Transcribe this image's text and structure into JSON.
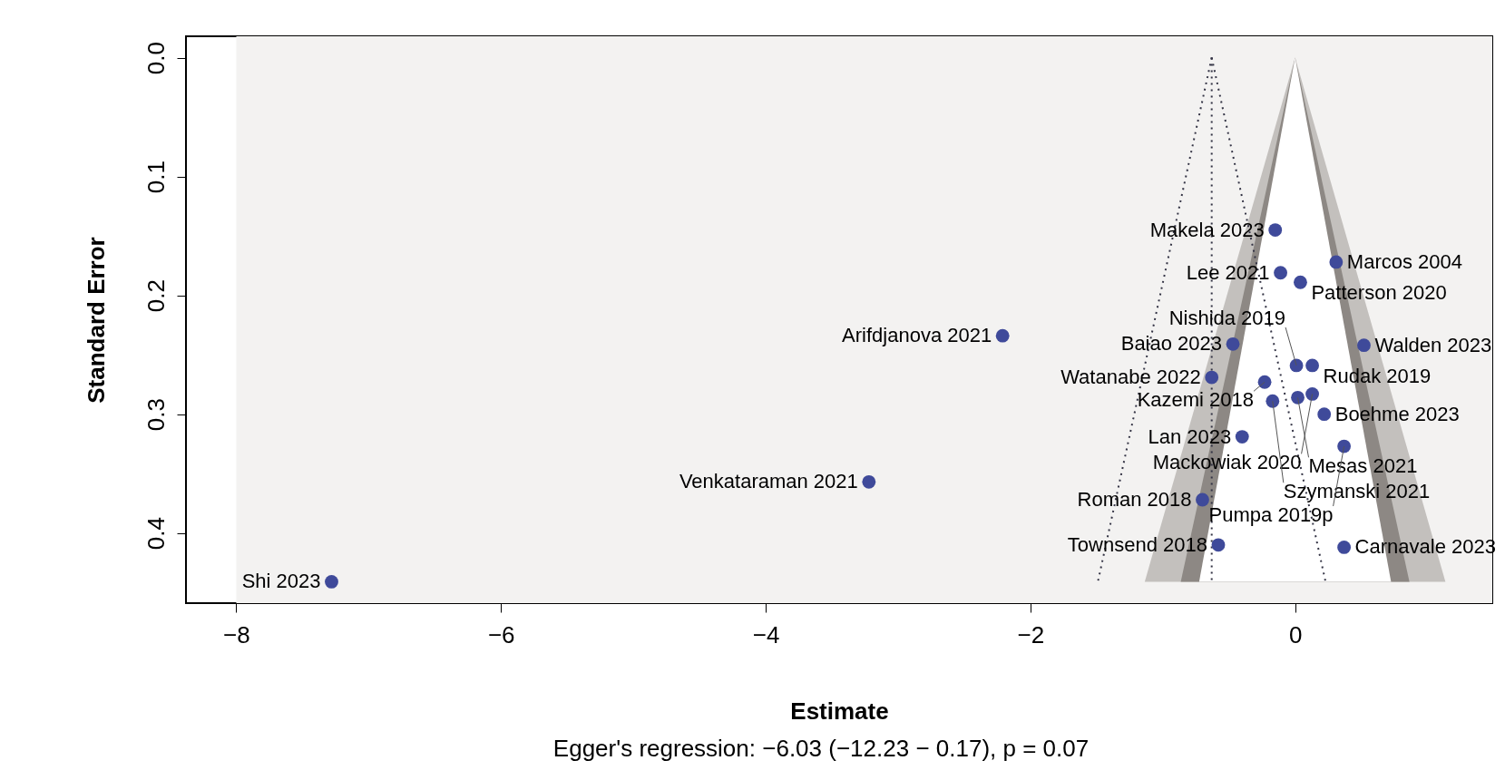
{
  "chart_data": {
    "type": "scatter",
    "xlabel": "Estimate",
    "ylabel": "Standard Error",
    "xlim": [
      -8.38,
      1.49
    ],
    "ylim": [
      0.459,
      -0.018
    ],
    "xticks": [
      {
        "value": -8,
        "label": "−8"
      },
      {
        "value": -6,
        "label": "−6"
      },
      {
        "value": -4,
        "label": "−4"
      },
      {
        "value": -2,
        "label": "−2"
      },
      0
    ],
    "yticks": [
      {
        "value": 0,
        "label": "0.0"
      },
      {
        "value": 0.1,
        "label": "0.1"
      },
      {
        "value": 0.2,
        "label": "0.2"
      },
      {
        "value": 0.3,
        "label": "0.3"
      },
      {
        "value": 0.4,
        "label": "0.4"
      }
    ],
    "grid": false,
    "bands": [
      {
        "axis": "x",
        "from": -8,
        "to": 1.49,
        "color": "#f3f2f1"
      }
    ],
    "series": [
      {
        "type": "area",
        "color": "#c3c0bd",
        "x": [
          -1.136,
          0,
          1.136
        ],
        "values": [
          0.441,
          0,
          0.441
        ]
      },
      {
        "type": "area",
        "color": "#8d8884",
        "x": [
          -0.864,
          0,
          0.864
        ],
        "values": [
          0.441,
          0,
          0.441
        ]
      },
      {
        "type": "area",
        "color": "#ffffff",
        "x": [
          -0.725,
          0,
          0.725
        ],
        "values": [
          0.441,
          0,
          0.441
        ]
      },
      {
        "type": "line",
        "color": "#333344",
        "line_style": "dotted",
        "x": [
          -0.63,
          -1.49
        ],
        "values": [
          0,
          0.441
        ]
      },
      {
        "type": "line",
        "color": "#333344",
        "line_style": "dotted",
        "x": [
          -0.63,
          -0.63
        ],
        "values": [
          0,
          0.441
        ]
      },
      {
        "type": "line",
        "color": "#333344",
        "line_style": "dotted",
        "x": [
          -0.63,
          0.23
        ],
        "values": [
          0,
          0.441
        ]
      },
      {
        "marker": "circle",
        "color": "#3f4a9a",
        "x": [
          -0.15,
          0.31,
          -0.11,
          0.04,
          -2.21,
          -0.47,
          0.52,
          0.01,
          0.13,
          -0.63,
          -0.23,
          0.13,
          0.02,
          -0.17,
          0.22,
          -0.4,
          0.37,
          -3.22,
          -0.7,
          -0.58,
          0.37,
          -7.28
        ],
        "values": [
          0.145,
          0.172,
          0.181,
          0.189,
          0.234,
          0.241,
          0.242,
          0.259,
          0.259,
          0.269,
          0.273,
          0.283,
          0.286,
          0.289,
          0.3,
          0.319,
          0.327,
          0.357,
          0.372,
          0.41,
          0.412,
          0.441
        ]
      }
    ],
    "annotations": [
      {
        "text": "Makela 2023",
        "x": -0.15,
        "y": 0.145
      },
      {
        "text": "Marcos 2004",
        "x": 0.31,
        "y": 0.172
      },
      {
        "text": "Lee 2021",
        "x": -0.11,
        "y": 0.181
      },
      {
        "text": "Patterson 2020",
        "x": 0.04,
        "y": 0.189
      },
      {
        "text": "Arifdjanova 2021",
        "x": -2.21,
        "y": 0.234
      },
      {
        "text": "Baiao 2023",
        "x": -0.47,
        "y": 0.241
      },
      {
        "text": "Walden 2023",
        "x": 0.52,
        "y": 0.242
      },
      {
        "text": "Nishida 2019",
        "x": 0.01,
        "y": 0.259
      },
      {
        "text": "Rudak 2019",
        "x": 0.13,
        "y": 0.259
      },
      {
        "text": "Watanabe 2022",
        "x": -0.63,
        "y": 0.269
      },
      {
        "text": "Kazemi 2018",
        "x": -0.23,
        "y": 0.273
      },
      {
        "text": "Mackowiak 2020",
        "x": 0.13,
        "y": 0.283
      },
      {
        "text": "Mesas 2021",
        "x": 0.02,
        "y": 0.286
      },
      {
        "text": "Szymanski 2021",
        "x": -0.17,
        "y": 0.289
      },
      {
        "text": "Boehme 2023",
        "x": 0.22,
        "y": 0.3
      },
      {
        "text": "Lan 2023",
        "x": -0.4,
        "y": 0.319
      },
      {
        "text": "Pumpa 2019p",
        "x": 0.37,
        "y": 0.327
      },
      {
        "text": "Venkataraman 2021",
        "x": -3.22,
        "y": 0.357
      },
      {
        "text": "Roman 2018",
        "x": -0.7,
        "y": 0.372
      },
      {
        "text": "Townsend 2018",
        "x": -0.58,
        "y": 0.41
      },
      {
        "text": "Carnavale 2023",
        "x": 0.37,
        "y": 0.412
      },
      {
        "text": "Shi 2023",
        "x": -7.28,
        "y": 0.441
      },
      "Egger's regression: −6.03 (−12.23 − 0.17), p = 0.07"
    ]
  }
}
